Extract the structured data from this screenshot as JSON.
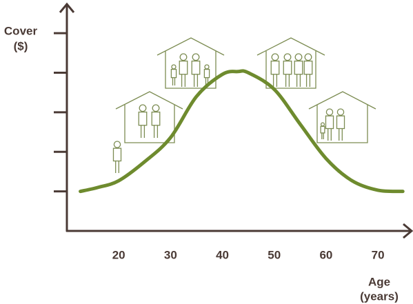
{
  "chart_data": {
    "type": "line",
    "y_label": [
      "Cover",
      "($)"
    ],
    "x_label": [
      "Age",
      "(years)"
    ],
    "x": [
      12.6,
      16,
      20,
      25,
      30,
      35,
      40,
      43,
      45,
      50,
      55,
      60,
      65,
      70,
      74.8
    ],
    "series": [
      {
        "color": "#6e8b2e",
        "values": [
          1.0,
          1.1,
          1.27,
          1.75,
          2.36,
          3.4,
          3.96,
          4.03,
          4.0,
          3.58,
          2.7,
          1.83,
          1.27,
          1.03,
          1.0
        ]
      }
    ],
    "xlim": [
      10,
      76.5
    ],
    "ylim": [
      0,
      5.7
    ],
    "xticks": [
      20,
      30,
      40,
      50,
      60,
      70
    ],
    "yticks": [
      1,
      2,
      3,
      4,
      5
    ]
  }
}
